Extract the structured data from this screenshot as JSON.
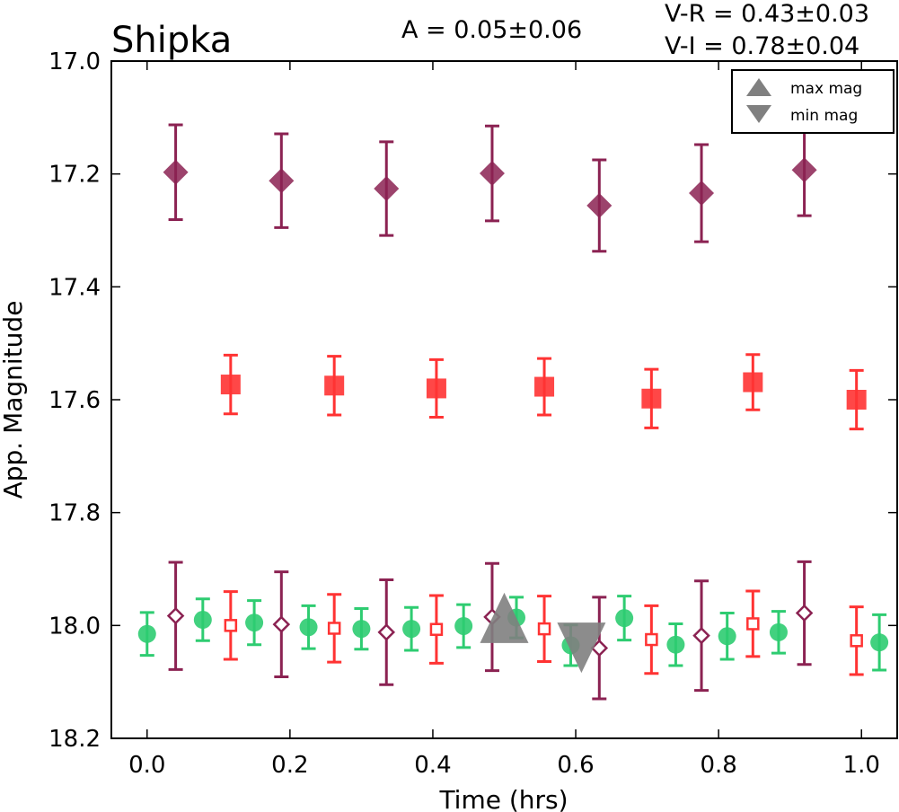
{
  "chart_data": {
    "type": "scatter",
    "title": "Shipka",
    "annotations": {
      "amplitude": "A  = 0.05±0.06",
      "v_r": "V-R = 0.43±0.03",
      "v_i": "V-I  = 0.78±0.04"
    },
    "xlabel": "Time (hrs)",
    "ylabel": "App. Magnitude",
    "xlim": [
      -0.05,
      1.05
    ],
    "ylim": [
      18.2,
      17.0
    ],
    "y_inverted": true,
    "x_ticks": [
      "0.0",
      "0.2",
      "0.4",
      "0.6",
      "0.8",
      "1.0"
    ],
    "x_tick_values": [
      0.0,
      0.2,
      0.4,
      0.6,
      0.8,
      1.0
    ],
    "y_ticks": [
      "17.0",
      "17.2",
      "17.4",
      "17.6",
      "17.8",
      "18.0",
      "18.2"
    ],
    "y_tick_values": [
      17.0,
      17.2,
      17.4,
      17.6,
      17.8,
      18.0,
      18.2
    ],
    "grid": false,
    "legend_position": "top-right",
    "legend": [
      {
        "label": "max mag",
        "marker": "triangle-up",
        "color": "#808080"
      },
      {
        "label": "min mag",
        "marker": "triangle-down",
        "color": "#808080"
      }
    ],
    "series": [
      {
        "marker": "diamond",
        "filled": true,
        "color": "#8B2252",
        "x": [
          0.04,
          0.188,
          0.335,
          0.483,
          0.633,
          0.776,
          0.92
        ],
        "y": [
          17.197,
          17.212,
          17.226,
          17.199,
          17.256,
          17.234,
          17.193
        ],
        "err": [
          0.084,
          0.083,
          0.083,
          0.084,
          0.081,
          0.086,
          0.081
        ]
      },
      {
        "marker": "square",
        "filled": true,
        "color": "#FF3333",
        "x": [
          0.117,
          0.262,
          0.405,
          0.556,
          0.706,
          0.848,
          0.993
        ],
        "y": [
          17.573,
          17.575,
          17.58,
          17.577,
          17.598,
          17.569,
          17.6
        ],
        "err": [
          0.052,
          0.052,
          0.051,
          0.05,
          0.052,
          0.049,
          0.052
        ]
      },
      {
        "marker": "circle",
        "filled": true,
        "color": "#2ECC71",
        "x": [
          0.0,
          0.078,
          0.15,
          0.226,
          0.3,
          0.37,
          0.443,
          0.517,
          0.593,
          0.668,
          0.74,
          0.812,
          0.884,
          1.025
        ],
        "y": [
          18.015,
          17.99,
          17.995,
          18.003,
          18.006,
          18.006,
          18.001,
          17.986,
          18.035,
          17.987,
          18.034,
          18.019,
          18.012,
          18.03
        ],
        "err": [
          0.038,
          0.037,
          0.039,
          0.038,
          0.036,
          0.038,
          0.038,
          0.036,
          0.036,
          0.039,
          0.037,
          0.041,
          0.037,
          0.049
        ]
      },
      {
        "marker": "square",
        "filled": false,
        "color": "#FF3333",
        "x": [
          0.117,
          0.262,
          0.405,
          0.556,
          0.706,
          0.848,
          0.993
        ],
        "y": [
          18.0,
          18.005,
          18.007,
          18.006,
          18.025,
          17.997,
          18.027
        ],
        "err": [
          0.06,
          0.06,
          0.06,
          0.058,
          0.06,
          0.058,
          0.06
        ]
      },
      {
        "marker": "diamond",
        "filled": false,
        "color": "#8B2252",
        "x": [
          0.04,
          0.188,
          0.335,
          0.483,
          0.633,
          0.776,
          0.92
        ],
        "y": [
          17.983,
          17.998,
          18.012,
          17.985,
          18.04,
          18.018,
          17.978
        ],
        "err": [
          0.095,
          0.093,
          0.093,
          0.095,
          0.09,
          0.097,
          0.091
        ]
      }
    ],
    "extrema": [
      {
        "label": "max mag",
        "marker": "triangle-up",
        "color": "#808080",
        "x": 0.5,
        "y": 17.993
      },
      {
        "label": "min mag",
        "marker": "triangle-down",
        "color": "#808080",
        "x": 0.608,
        "y": 18.033
      }
    ]
  }
}
